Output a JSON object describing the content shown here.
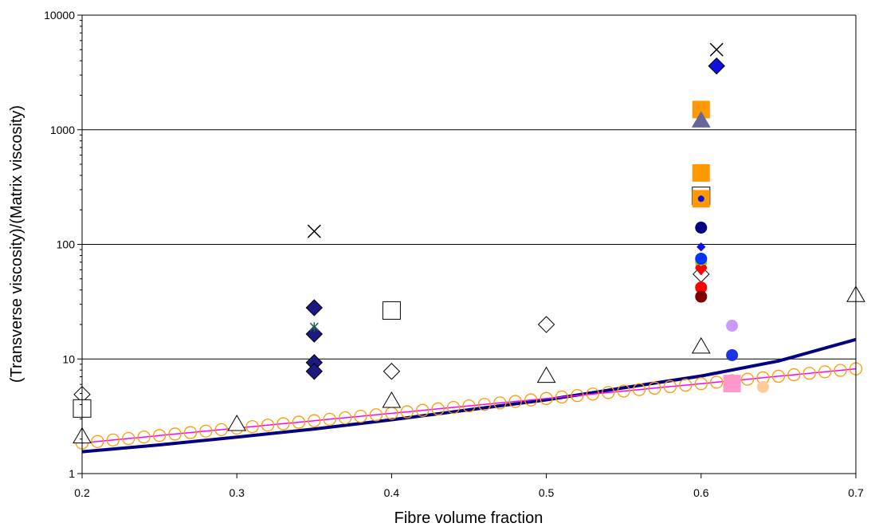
{
  "chart_data": {
    "type": "scatter",
    "title": "",
    "xlabel": "Fibre volume fraction",
    "ylabel": "(Transverse viscosity)/(Matrix viscosity)",
    "xlim": [
      0.2,
      0.7
    ],
    "ylim": [
      1,
      10000
    ],
    "y_scale": "log",
    "x_ticks": [
      "0.2",
      "0.3",
      "0.4",
      "0.5",
      "0.6",
      "0.7"
    ],
    "y_ticks": [
      "1",
      "10",
      "100",
      "1000",
      "10000"
    ],
    "grid": "horizontal",
    "legend": "none",
    "series": [
      {
        "marker": "triangle-open",
        "color": "#000000",
        "points": [
          [
            0.2,
            2.1
          ],
          [
            0.3,
            2.7
          ],
          [
            0.4,
            4.3
          ],
          [
            0.5,
            7.1
          ],
          [
            0.6,
            12.8
          ],
          [
            0.7,
            36
          ]
        ]
      },
      {
        "marker": "diamond-open",
        "color": "#000000",
        "points": [
          [
            0.2,
            4.9
          ],
          [
            0.4,
            7.8
          ],
          [
            0.5,
            20
          ],
          [
            0.6,
            55
          ]
        ]
      },
      {
        "marker": "square-open",
        "color": "#000000",
        "points": [
          [
            0.2,
            3.7
          ],
          [
            0.4,
            26.5
          ],
          [
            0.6,
            265
          ]
        ]
      },
      {
        "marker": "cross",
        "color": "#000000",
        "points": [
          [
            0.35,
            130
          ],
          [
            0.61,
            5000
          ]
        ]
      },
      {
        "marker": "diamond",
        "color": "#1a1a80",
        "points": [
          [
            0.35,
            28
          ],
          [
            0.35,
            16.5
          ],
          [
            0.35,
            9.3
          ],
          [
            0.35,
            7.8
          ]
        ]
      },
      {
        "marker": "star",
        "color": "#206060",
        "points": [
          [
            0.35,
            19
          ]
        ]
      },
      {
        "marker": "diamond",
        "color": "#1010e0",
        "points": [
          [
            0.61,
            3600
          ]
        ]
      },
      {
        "marker": "square",
        "color": "#ff9900",
        "points": [
          [
            0.6,
            1500
          ],
          [
            0.6,
            420
          ],
          [
            0.6,
            250
          ]
        ]
      },
      {
        "marker": "triangle",
        "color": "#666699",
        "points": [
          [
            0.6,
            1200
          ]
        ]
      },
      {
        "marker": "circle-small",
        "color": "#1010e0",
        "points": [
          [
            0.6,
            250
          ]
        ]
      },
      {
        "marker": "circle",
        "color": "#000080",
        "points": [
          [
            0.6,
            140
          ]
        ]
      },
      {
        "marker": "diamond-small",
        "color": "#1010e0",
        "points": [
          [
            0.6,
            95
          ]
        ]
      },
      {
        "marker": "circle",
        "color": "#99cc00",
        "points": [
          [
            0.6,
            70
          ]
        ]
      },
      {
        "marker": "circle",
        "color": "#0033ff",
        "points": [
          [
            0.6,
            75
          ]
        ]
      },
      {
        "marker": "heart",
        "color": "#ff0000",
        "points": [
          [
            0.6,
            60
          ]
        ]
      },
      {
        "marker": "circle",
        "color": "#ff0000",
        "points": [
          [
            0.6,
            42
          ]
        ]
      },
      {
        "marker": "circle",
        "color": "#800000",
        "points": [
          [
            0.6,
            35
          ]
        ]
      },
      {
        "marker": "circle",
        "color": "#cc99ff",
        "points": [
          [
            0.62,
            19.5
          ]
        ]
      },
      {
        "marker": "circle",
        "color": "#1a33e6",
        "points": [
          [
            0.62,
            10.8
          ]
        ]
      },
      {
        "marker": "square",
        "color": "#ff99cc",
        "points": [
          [
            0.62,
            6.1
          ]
        ]
      },
      {
        "marker": "circle",
        "color": "#ffcc99",
        "points": [
          [
            0.64,
            5.7
          ]
        ]
      },
      {
        "marker": "line",
        "color": "#000080",
        "width": 4,
        "points": [
          [
            0.2,
            1.55
          ],
          [
            0.25,
            1.78
          ],
          [
            0.3,
            2.08
          ],
          [
            0.35,
            2.45
          ],
          [
            0.4,
            2.95
          ],
          [
            0.45,
            3.6
          ],
          [
            0.5,
            4.4
          ],
          [
            0.55,
            5.6
          ],
          [
            0.6,
            7.1
          ],
          [
            0.65,
            9.6
          ],
          [
            0.7,
            14.8
          ]
        ]
      },
      {
        "marker": "line",
        "color": "#ff00ff",
        "width": 1.5,
        "points": [
          [
            0.2,
            1.85
          ],
          [
            0.7,
            8.2
          ]
        ]
      },
      {
        "marker": "circle-open-chain",
        "color": "#ff9900",
        "x_from": 0.2,
        "x_to": 0.7,
        "x_step": 0.01,
        "y_from": 1.85,
        "y_to": 8.2
      }
    ]
  }
}
